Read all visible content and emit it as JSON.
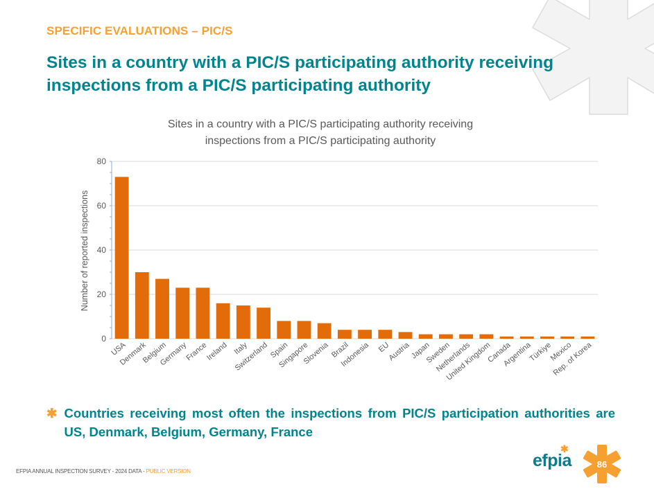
{
  "header": {
    "section_title": "SPECIFIC EVALUATIONS – PIC/S",
    "main_title": "Sites in a country with a PIC/S participating authority receiving inspections from a PIC/S participating authority"
  },
  "chart_data": {
    "type": "bar",
    "title_lines": [
      "Sites in a country with a PIC/S participating authority receiving",
      "inspections from a PIC/S participating authority"
    ],
    "xlabel": "",
    "ylabel": "Number of reported inspections",
    "ylim": [
      0,
      80
    ],
    "yticks": [
      "0",
      "20",
      "40",
      "60",
      "80"
    ],
    "grid": true,
    "bar_color": "#e36c0a",
    "categories": [
      "USA",
      "Denmark",
      "Belgium",
      "Germany",
      "France",
      "Ireland",
      "Italy",
      "Switzerland",
      "Spain",
      "Singapore",
      "Slovenia",
      "Brazil",
      "Indonesia",
      "EU",
      "Austria",
      "Japan",
      "Sweden",
      "Netherlands",
      "United Kingdom",
      "Canada",
      "Argentina",
      "Türkiye",
      "Mexico",
      "Rep. of Korea"
    ],
    "values": [
      73,
      30,
      27,
      23,
      23,
      16,
      15,
      14,
      8,
      8,
      7,
      4,
      4,
      4,
      3,
      2,
      2,
      2,
      2,
      1,
      1,
      1,
      1,
      1
    ]
  },
  "bullet": {
    "icon": "asterisk-icon",
    "text": "Countries receiving most often the inspections from PIC/S participation authorities are US, Denmark, Belgium, Germany, France"
  },
  "footer": {
    "text": "EFPIA ANNUAL INSPECTION SURVEY - 2024 DATA - ",
    "highlight": "PUBLIC VERSION"
  },
  "logo": {
    "text": "efpia",
    "page_number": "86"
  },
  "colors": {
    "accent_orange": "#f7a032",
    "teal": "#00858f",
    "bar": "#e36c0a"
  }
}
